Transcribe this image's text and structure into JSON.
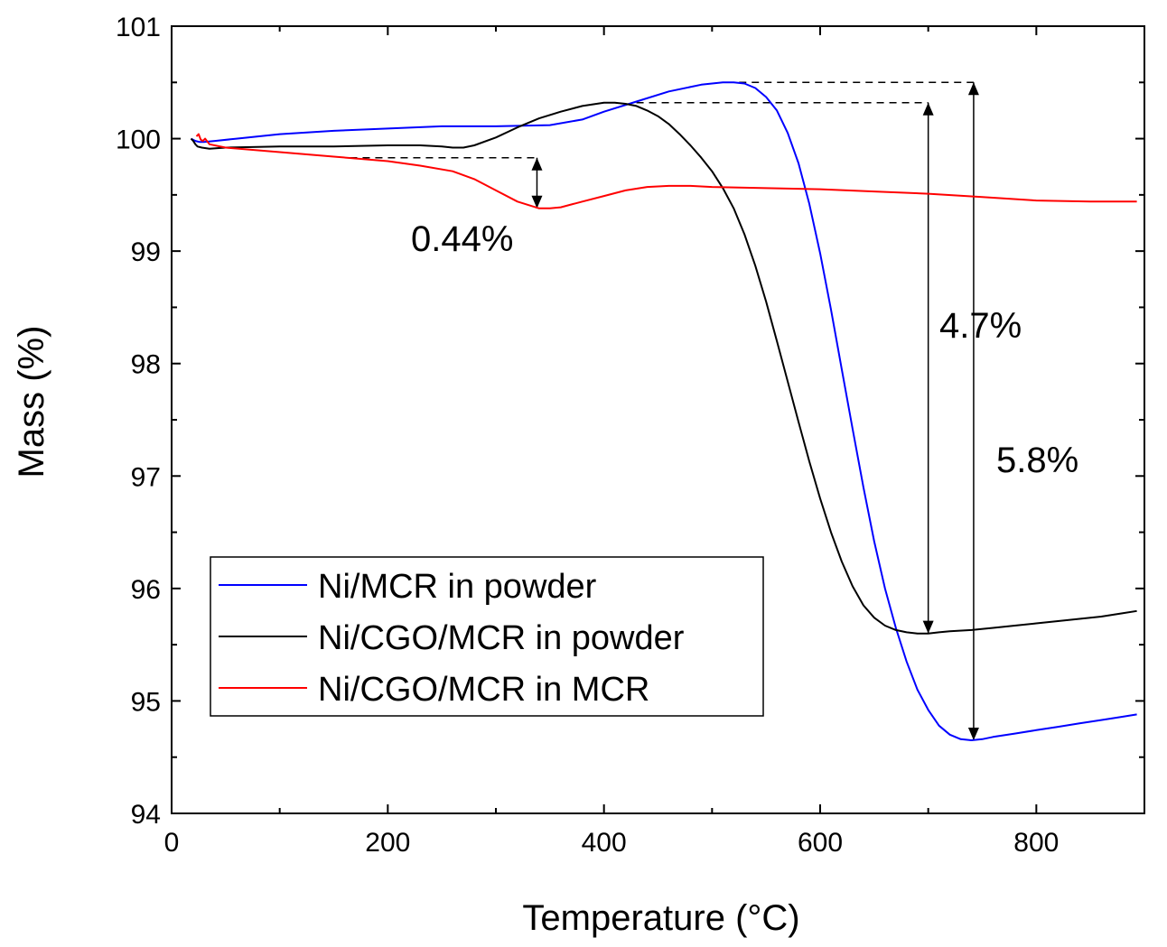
{
  "chart_data": {
    "type": "line",
    "title": "",
    "xlabel": "Temperature (°C)",
    "ylabel": "Mass (%)",
    "xlim": [
      0,
      900
    ],
    "ylim": [
      94,
      101
    ],
    "xticks": [
      0,
      200,
      400,
      600,
      800
    ],
    "xtick_labels": [
      "0",
      "200",
      "400",
      "600",
      "800"
    ],
    "yticks": [
      94,
      95,
      96,
      97,
      98,
      99,
      100,
      101
    ],
    "ytick_labels": [
      "94",
      "95",
      "96",
      "97",
      "98",
      "99",
      "100",
      "101"
    ],
    "grid": false,
    "legend_position": "bottom-left",
    "series": [
      {
        "name": "Ni/MCR in powder",
        "color": "#0000ff",
        "x": [
          18,
          22,
          26,
          30,
          40,
          60,
          80,
          100,
          150,
          200,
          250,
          300,
          350,
          380,
          400,
          430,
          460,
          490,
          510,
          520,
          530,
          540,
          550,
          560,
          570,
          580,
          590,
          600,
          610,
          620,
          630,
          640,
          650,
          660,
          670,
          680,
          690,
          700,
          710,
          720,
          730,
          740,
          750,
          760,
          780,
          800,
          820,
          840,
          860,
          880,
          893
        ],
        "y": [
          100.0,
          99.98,
          99.97,
          99.97,
          99.98,
          100.0,
          100.02,
          100.04,
          100.07,
          100.09,
          100.11,
          100.11,
          100.12,
          100.17,
          100.24,
          100.33,
          100.42,
          100.48,
          100.5,
          100.5,
          100.49,
          100.45,
          100.37,
          100.25,
          100.05,
          99.78,
          99.42,
          98.98,
          98.48,
          97.95,
          97.42,
          96.9,
          96.42,
          96.0,
          95.65,
          95.35,
          95.1,
          94.92,
          94.78,
          94.7,
          94.66,
          94.65,
          94.66,
          94.68,
          94.71,
          94.74,
          94.77,
          94.8,
          94.83,
          94.86,
          94.88
        ]
      },
      {
        "name": "Ni/CGO/MCR in powder",
        "color": "#000000",
        "x": [
          18,
          20,
          22,
          24,
          28,
          35,
          50,
          100,
          150,
          200,
          230,
          250,
          260,
          270,
          280,
          300,
          320,
          340,
          360,
          380,
          400,
          410,
          420,
          430,
          440,
          450,
          460,
          470,
          480,
          490,
          500,
          510,
          520,
          530,
          540,
          550,
          560,
          570,
          580,
          590,
          600,
          610,
          620,
          630,
          640,
          650,
          660,
          670,
          680,
          690,
          700,
          710,
          720,
          740,
          760,
          780,
          800,
          820,
          840,
          860,
          880,
          893
        ],
        "y": [
          100.0,
          99.98,
          99.95,
          99.93,
          99.92,
          99.91,
          99.92,
          99.93,
          99.93,
          99.94,
          99.94,
          99.93,
          99.92,
          99.92,
          99.94,
          100.01,
          100.1,
          100.18,
          100.24,
          100.29,
          100.32,
          100.32,
          100.31,
          100.29,
          100.25,
          100.2,
          100.13,
          100.04,
          99.94,
          99.83,
          99.71,
          99.56,
          99.38,
          99.15,
          98.87,
          98.55,
          98.2,
          97.84,
          97.48,
          97.13,
          96.8,
          96.5,
          96.24,
          96.02,
          95.85,
          95.74,
          95.67,
          95.63,
          95.61,
          95.6,
          95.6,
          95.61,
          95.62,
          95.63,
          95.65,
          95.67,
          95.69,
          95.71,
          95.73,
          95.75,
          95.78,
          95.8
        ]
      },
      {
        "name": "Ni/CGO/MCR in MCR",
        "color": "#ff0000",
        "x": [
          23,
          25,
          27,
          29,
          31,
          35,
          50,
          100,
          150,
          200,
          230,
          260,
          280,
          300,
          320,
          340,
          350,
          360,
          380,
          400,
          420,
          440,
          460,
          480,
          500,
          550,
          600,
          650,
          700,
          750,
          800,
          850,
          893
        ],
        "y": [
          100.02,
          100.04,
          99.99,
          99.98,
          100.0,
          99.95,
          99.92,
          99.88,
          99.84,
          99.8,
          99.76,
          99.71,
          99.64,
          99.54,
          99.44,
          99.38,
          99.38,
          99.39,
          99.44,
          99.49,
          99.54,
          99.57,
          99.58,
          99.58,
          99.57,
          99.56,
          99.55,
          99.53,
          99.51,
          99.48,
          99.45,
          99.44,
          99.44
        ]
      }
    ],
    "annotations": [
      {
        "text": "0.44%",
        "x": 338,
        "y_top": 99.83,
        "y_bottom": 99.38
      },
      {
        "text": "4.7%",
        "x": 700,
        "y_top": 100.32,
        "y_bottom": 95.6
      },
      {
        "text": "5.8%",
        "x": 742,
        "y_top": 100.5,
        "y_bottom": 94.65
      }
    ]
  }
}
